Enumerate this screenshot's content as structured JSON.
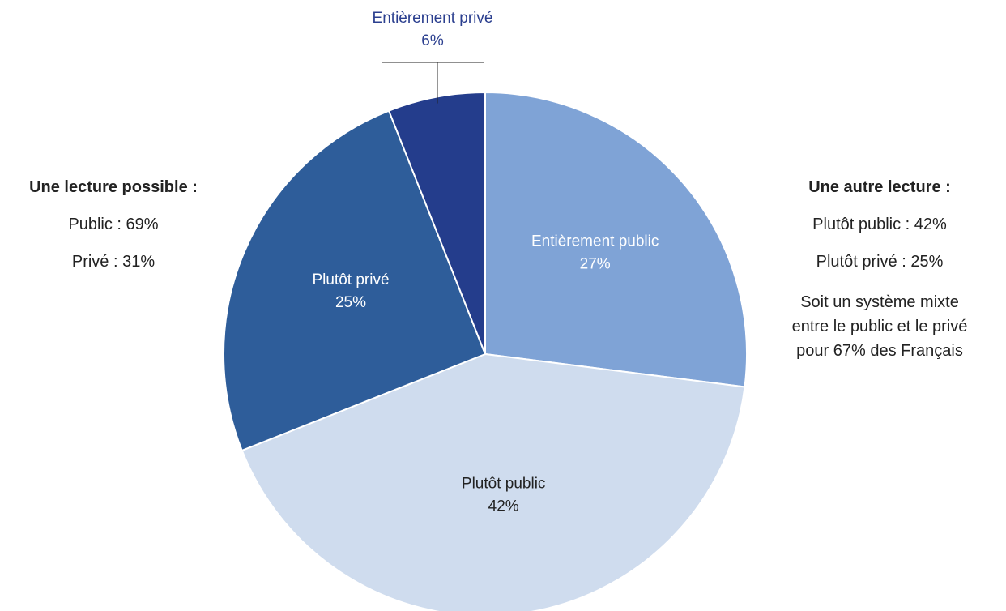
{
  "chart_data": {
    "type": "pie",
    "title": "",
    "slices": [
      {
        "label": "Entièrement public",
        "value": 27,
        "value_label": "27%",
        "color": "#7fa3d6",
        "label_color": "#ffffff"
      },
      {
        "label": "Plutôt public",
        "value": 42,
        "value_label": "42%",
        "color": "#cfdcee",
        "label_color": "#222222"
      },
      {
        "label": "Plutôt privé",
        "value": 25,
        "value_label": "25%",
        "color": "#2e5d9a",
        "label_color": "#ffffff"
      },
      {
        "label": "Entièrement privé",
        "value": 6,
        "value_label": "6%",
        "color": "#243d8c",
        "label_color": "#2b3f8f"
      }
    ],
    "start": "12 o'clock",
    "direction": "clockwise"
  },
  "left_panel": {
    "heading": "Une lecture possible :",
    "line1": "Public : 69%",
    "line2": "Privé : 31%"
  },
  "right_panel": {
    "heading": "Une autre lecture :",
    "line1": "Plutôt public : 42%",
    "line2": "Plutôt privé : 25%",
    "note_line1": "Soit un système mixte",
    "note_line2": "entre le public et le privé",
    "note_line3": "pour 67% des Français"
  }
}
